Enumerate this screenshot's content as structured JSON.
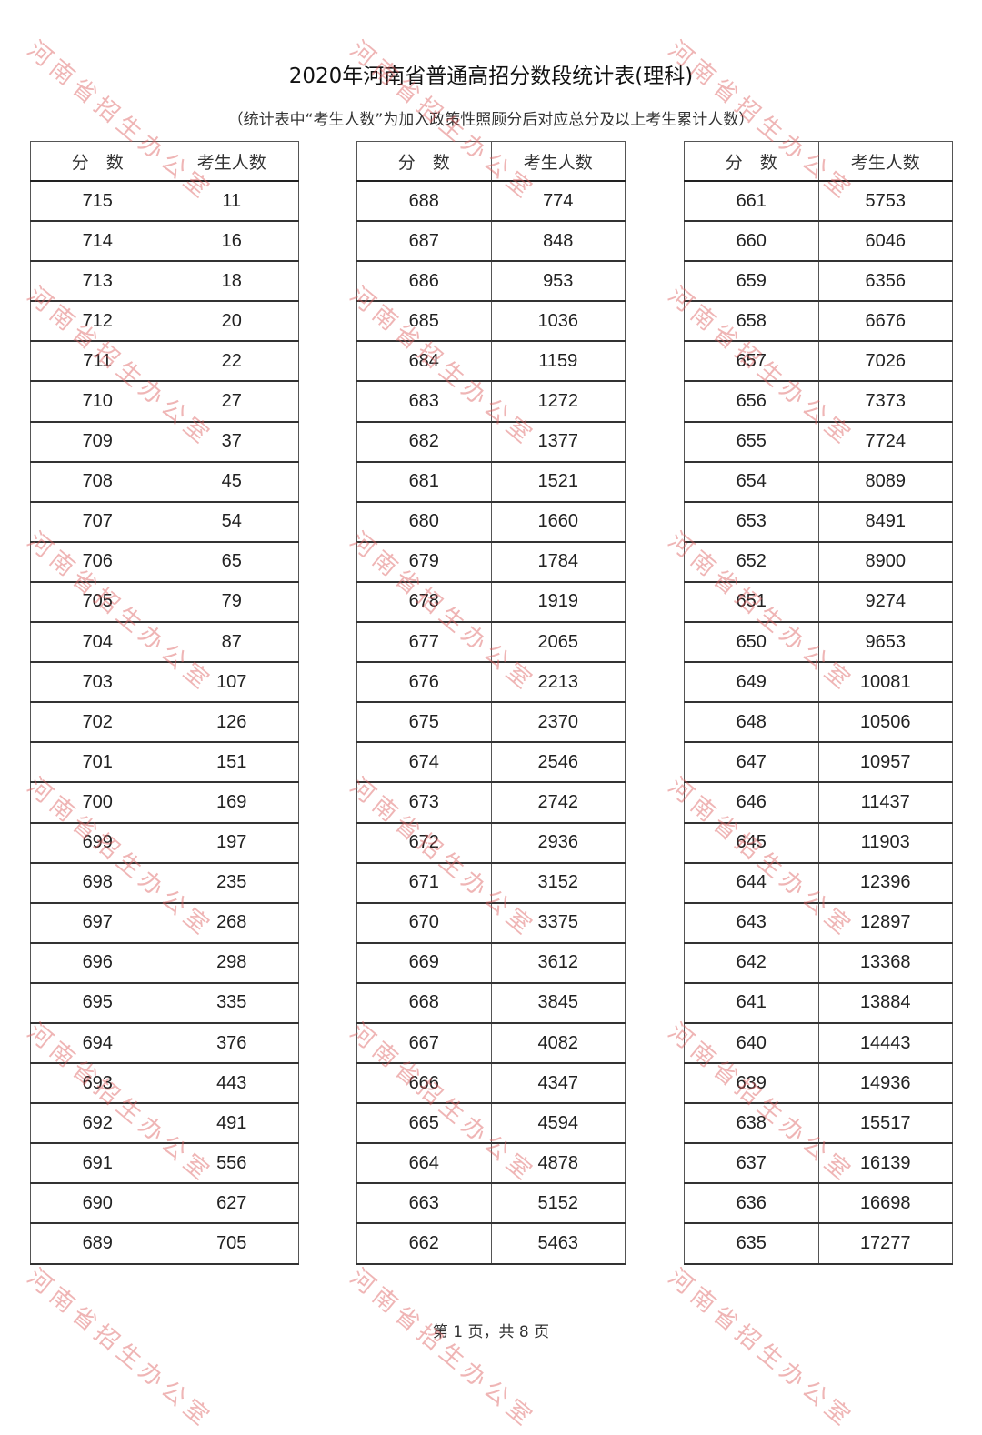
{
  "title": "2020年河南省普通高招分数段统计表(理科)",
  "subtitle": "（统计表中“考生人数”为加入政策性照顾分后对应总分及以上考生累计人数）",
  "headers": {
    "score": "分　数",
    "count": "考生人数"
  },
  "watermark": "河南省招生办公室",
  "watermark_color": "#dc5a5a",
  "tables": [
    {
      "rows": [
        [
          "715",
          "11"
        ],
        [
          "714",
          "16"
        ],
        [
          "713",
          "18"
        ],
        [
          "712",
          "20"
        ],
        [
          "711",
          "22"
        ],
        [
          "710",
          "27"
        ],
        [
          "709",
          "37"
        ],
        [
          "708",
          "45"
        ],
        [
          "707",
          "54"
        ],
        [
          "706",
          "65"
        ],
        [
          "705",
          "79"
        ],
        [
          "704",
          "87"
        ],
        [
          "703",
          "107"
        ],
        [
          "702",
          "126"
        ],
        [
          "701",
          "151"
        ],
        [
          "700",
          "169"
        ],
        [
          "699",
          "197"
        ],
        [
          "698",
          "235"
        ],
        [
          "697",
          "268"
        ],
        [
          "696",
          "298"
        ],
        [
          "695",
          "335"
        ],
        [
          "694",
          "376"
        ],
        [
          "693",
          "443"
        ],
        [
          "692",
          "491"
        ],
        [
          "691",
          "556"
        ],
        [
          "690",
          "627"
        ],
        [
          "689",
          "705"
        ]
      ]
    },
    {
      "rows": [
        [
          "688",
          "774"
        ],
        [
          "687",
          "848"
        ],
        [
          "686",
          "953"
        ],
        [
          "685",
          "1036"
        ],
        [
          "684",
          "1159"
        ],
        [
          "683",
          "1272"
        ],
        [
          "682",
          "1377"
        ],
        [
          "681",
          "1521"
        ],
        [
          "680",
          "1660"
        ],
        [
          "679",
          "1784"
        ],
        [
          "678",
          "1919"
        ],
        [
          "677",
          "2065"
        ],
        [
          "676",
          "2213"
        ],
        [
          "675",
          "2370"
        ],
        [
          "674",
          "2546"
        ],
        [
          "673",
          "2742"
        ],
        [
          "672",
          "2936"
        ],
        [
          "671",
          "3152"
        ],
        [
          "670",
          "3375"
        ],
        [
          "669",
          "3612"
        ],
        [
          "668",
          "3845"
        ],
        [
          "667",
          "4082"
        ],
        [
          "666",
          "4347"
        ],
        [
          "665",
          "4594"
        ],
        [
          "664",
          "4878"
        ],
        [
          "663",
          "5152"
        ],
        [
          "662",
          "5463"
        ]
      ]
    },
    {
      "rows": [
        [
          "661",
          "5753"
        ],
        [
          "660",
          "6046"
        ],
        [
          "659",
          "6356"
        ],
        [
          "658",
          "6676"
        ],
        [
          "657",
          "7026"
        ],
        [
          "656",
          "7373"
        ],
        [
          "655",
          "7724"
        ],
        [
          "654",
          "8089"
        ],
        [
          "653",
          "8491"
        ],
        [
          "652",
          "8900"
        ],
        [
          "651",
          "9274"
        ],
        [
          "650",
          "9653"
        ],
        [
          "649",
          "10081"
        ],
        [
          "648",
          "10506"
        ],
        [
          "647",
          "10957"
        ],
        [
          "646",
          "11437"
        ],
        [
          "645",
          "11903"
        ],
        [
          "644",
          "12396"
        ],
        [
          "643",
          "12897"
        ],
        [
          "642",
          "13368"
        ],
        [
          "641",
          "13884"
        ],
        [
          "640",
          "14443"
        ],
        [
          "639",
          "14936"
        ],
        [
          "638",
          "15517"
        ],
        [
          "637",
          "16139"
        ],
        [
          "636",
          "16698"
        ],
        [
          "635",
          "17277"
        ]
      ]
    }
  ],
  "footer": "第 1 页，共 8 页"
}
